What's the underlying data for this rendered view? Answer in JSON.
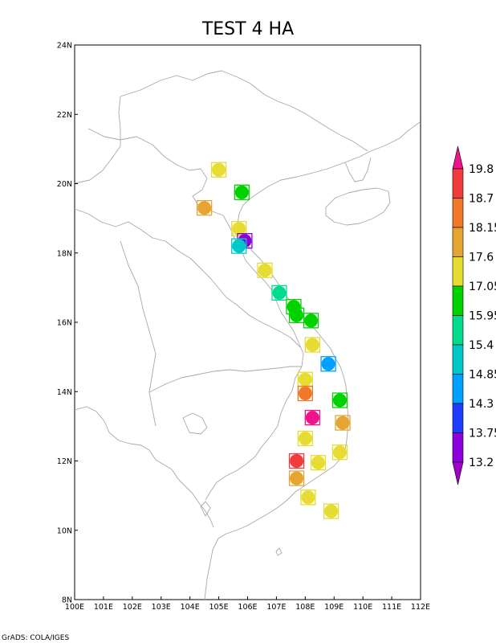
{
  "title": "TEST 4 HA",
  "credit": "GrADS: COLA/IGES",
  "map": {
    "lon_range": [
      100,
      112
    ],
    "lat_range": [
      8,
      24
    ],
    "lon_ticks": [
      {
        "value": 100,
        "label": "100E"
      },
      {
        "value": 101,
        "label": "101E"
      },
      {
        "value": 102,
        "label": "102E"
      },
      {
        "value": 103,
        "label": "103E"
      },
      {
        "value": 104,
        "label": "104E"
      },
      {
        "value": 105,
        "label": "105E"
      },
      {
        "value": 106,
        "label": "106E"
      },
      {
        "value": 107,
        "label": "107E"
      },
      {
        "value": 108,
        "label": "108E"
      },
      {
        "value": 109,
        "label": "109E"
      },
      {
        "value": 110,
        "label": "110E"
      },
      {
        "value": 111,
        "label": "111E"
      },
      {
        "value": 112,
        "label": "112E"
      }
    ],
    "lat_ticks": [
      {
        "value": 8,
        "label": "8N"
      },
      {
        "value": 10,
        "label": "10N"
      },
      {
        "value": 12,
        "label": "12N"
      },
      {
        "value": 14,
        "label": "14N"
      },
      {
        "value": 16,
        "label": "16N"
      },
      {
        "value": 18,
        "label": "18N"
      },
      {
        "value": 20,
        "label": "20N"
      },
      {
        "value": 22,
        "label": "22N"
      },
      {
        "value": 24,
        "label": "24N"
      }
    ],
    "coastline_color": "#a8a8a8"
  },
  "colorbar": {
    "labels": [
      "19.8",
      "18.7",
      "18.15",
      "17.6",
      "17.05",
      "15.95",
      "15.4",
      "14.85",
      "14.3",
      "13.75",
      "13.2"
    ],
    "colors": [
      "#f0148c",
      "#f03c3c",
      "#f07828",
      "#e6a532",
      "#e6dc32",
      "#00d200",
      "#00dc8c",
      "#00c8c8",
      "#00a0ff",
      "#1e3cff",
      "#8c00dc",
      "#a000c8"
    ]
  },
  "stations": [
    {
      "lon": 105.0,
      "lat": 20.4,
      "value": 17.3
    },
    {
      "lon": 105.8,
      "lat": 19.75,
      "value": 16.5
    },
    {
      "lon": 104.5,
      "lat": 19.3,
      "value": 17.9
    },
    {
      "lon": 105.7,
      "lat": 18.7,
      "value": 17.3
    },
    {
      "lon": 105.9,
      "lat": 18.35,
      "value": 13.5
    },
    {
      "lon": 105.7,
      "lat": 18.2,
      "value": 15.1
    },
    {
      "lon": 106.6,
      "lat": 17.5,
      "value": 17.3
    },
    {
      "lon": 107.1,
      "lat": 16.85,
      "value": 15.6
    },
    {
      "lon": 107.6,
      "lat": 16.45,
      "value": 16.5
    },
    {
      "lon": 107.7,
      "lat": 16.2,
      "value": 16.5
    },
    {
      "lon": 108.2,
      "lat": 16.05,
      "value": 16.5
    },
    {
      "lon": 108.25,
      "lat": 15.35,
      "value": 17.3
    },
    {
      "lon": 108.8,
      "lat": 14.8,
      "value": 14.6
    },
    {
      "lon": 108.0,
      "lat": 14.35,
      "value": 17.3
    },
    {
      "lon": 108.0,
      "lat": 13.95,
      "value": 18.4
    },
    {
      "lon": 109.2,
      "lat": 13.75,
      "value": 16.5
    },
    {
      "lon": 108.25,
      "lat": 13.25,
      "value": 20.2
    },
    {
      "lon": 109.3,
      "lat": 13.1,
      "value": 17.9
    },
    {
      "lon": 108.0,
      "lat": 12.65,
      "value": 17.3
    },
    {
      "lon": 109.2,
      "lat": 12.25,
      "value": 17.3
    },
    {
      "lon": 107.7,
      "lat": 12.0,
      "value": 19.2
    },
    {
      "lon": 108.45,
      "lat": 11.95,
      "value": 17.3
    },
    {
      "lon": 107.7,
      "lat": 11.5,
      "value": 17.9
    },
    {
      "lon": 108.1,
      "lat": 10.95,
      "value": 17.3
    },
    {
      "lon": 108.9,
      "lat": 10.55,
      "value": 17.3
    }
  ]
}
